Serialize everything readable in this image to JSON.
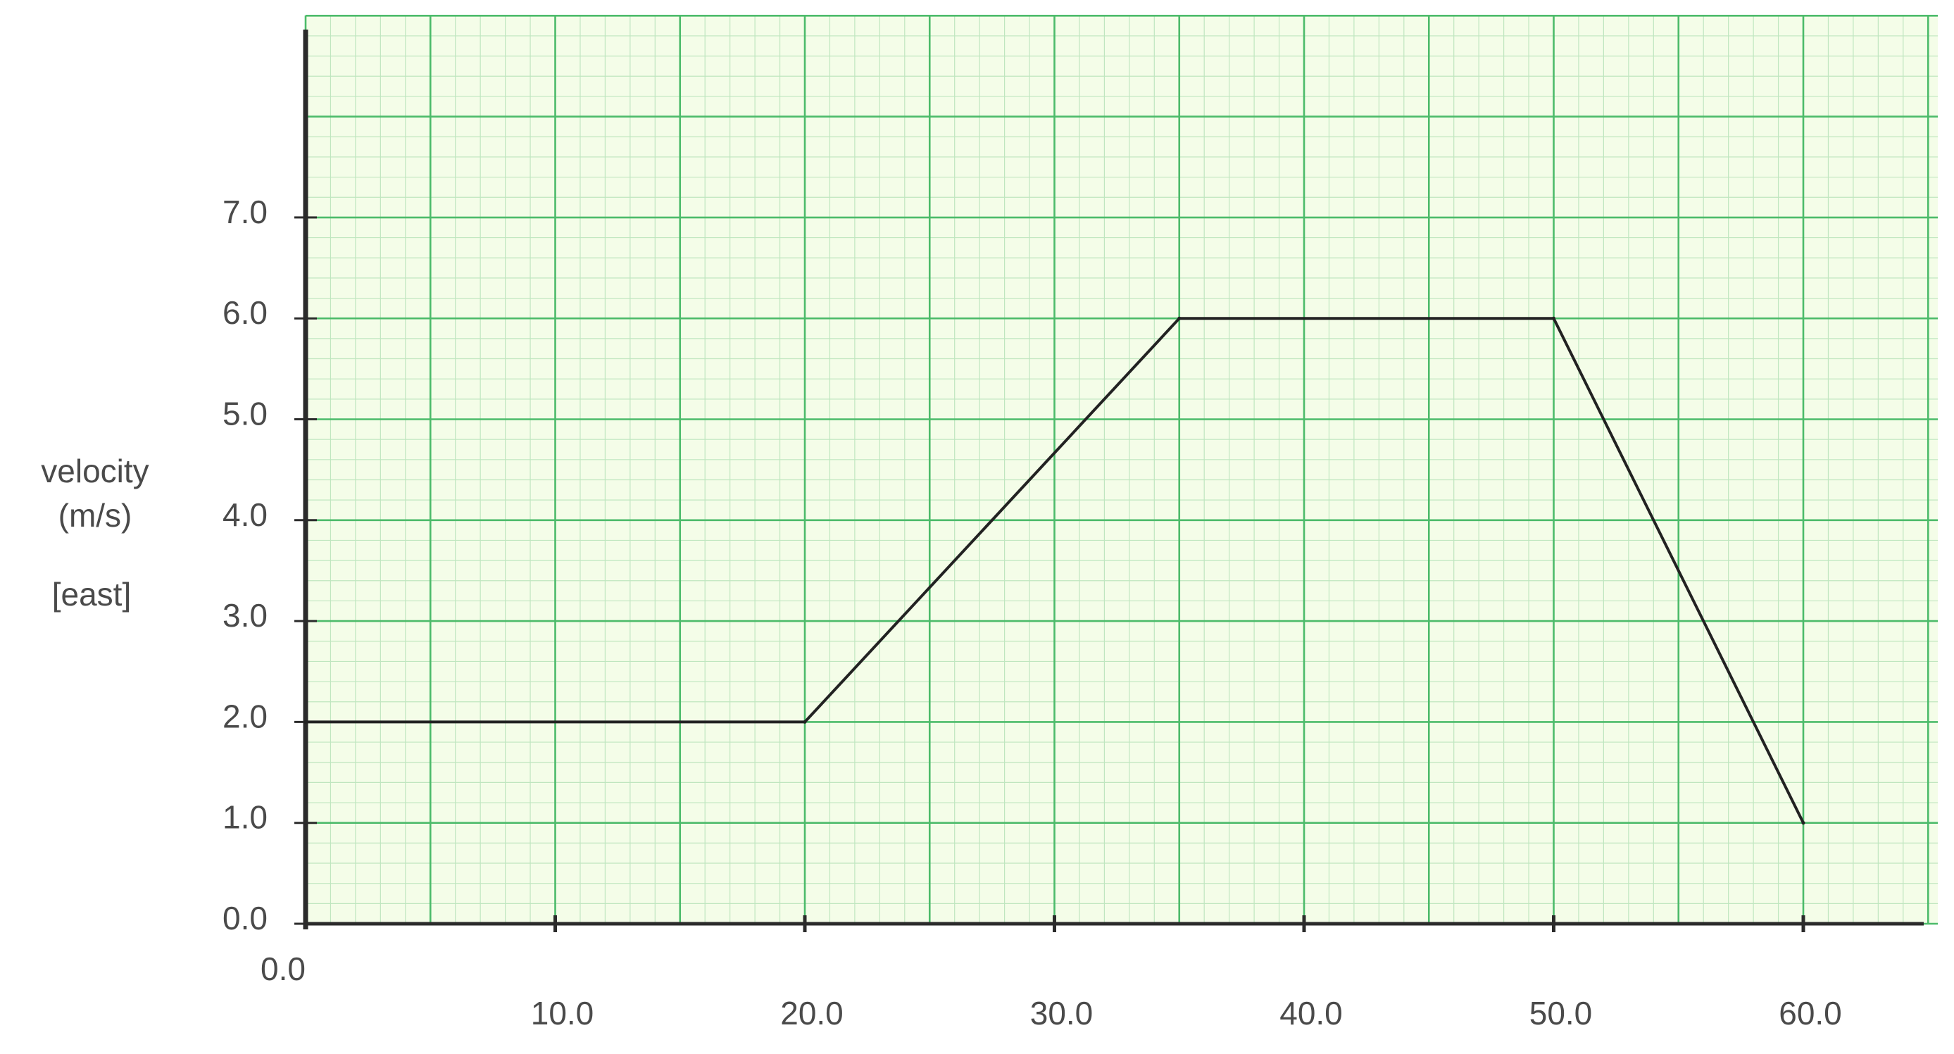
{
  "chart_data": {
    "type": "line",
    "title": "",
    "xlabel": "",
    "ylabel_lines": [
      "velocity",
      "(m/s)",
      "[east]"
    ],
    "x": [
      0,
      20,
      35,
      50,
      60
    ],
    "y": [
      2.0,
      2.0,
      6.0,
      6.0,
      1.0
    ],
    "series": [
      {
        "values": [
          2.0,
          2.0,
          6.0,
          6.0,
          1.0
        ]
      }
    ],
    "xlim": [
      0,
      65
    ],
    "ylim": [
      0,
      9
    ],
    "x_ticks": [
      "0.0",
      "10.0",
      "20.0",
      "30.0",
      "40.0",
      "50.0",
      "60.0"
    ],
    "y_ticks": [
      "0.0",
      "1.0",
      "2.0",
      "3.0",
      "4.0",
      "5.0",
      "6.0",
      "7.0"
    ],
    "grid": true,
    "legend": "none"
  },
  "colors": {
    "background": "#f4fde8",
    "grid_minor": "#bfe6bf",
    "grid_major": "#4cbb6a",
    "axis": "#2b2b2b",
    "line": "#222222",
    "text": "#4a4a4a"
  }
}
